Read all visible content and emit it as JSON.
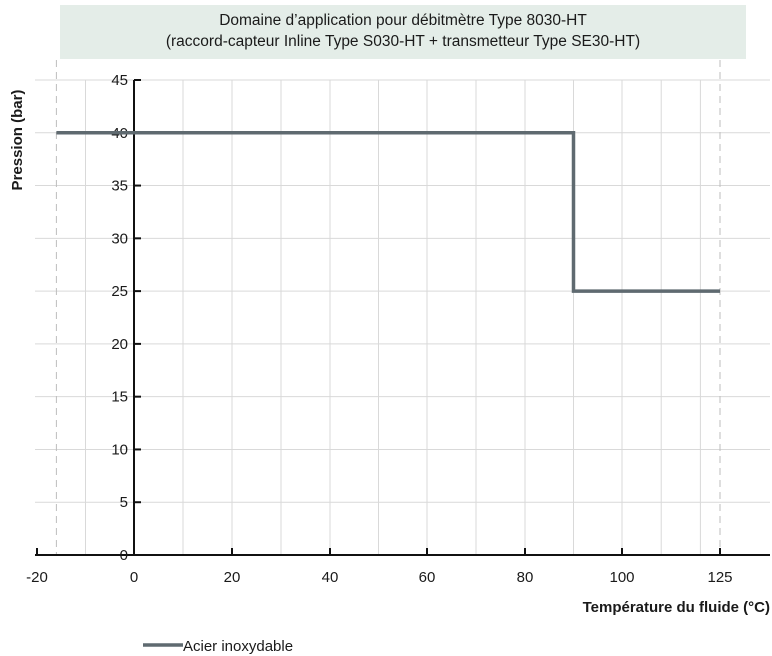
{
  "chart_data": {
    "type": "line",
    "title_line1": "Domaine d’application pour débitmètre Type 8030-HT",
    "title_line2": "(raccord-capteur Inline Type S030-HT + transmetteur Type SE30-HT)",
    "xlabel": "Température du fluide (°C)",
    "ylabel": "Pression (bar)",
    "x_ticks": [
      -20,
      0,
      20,
      40,
      60,
      80,
      100,
      125
    ],
    "y_ticks": [
      0,
      5,
      10,
      15,
      20,
      25,
      30,
      35,
      40,
      45
    ],
    "ylim": [
      0,
      45
    ],
    "grid": true,
    "series": [
      {
        "name": "Acier inoxydable",
        "color": "#5f6a70",
        "x": [
          -16,
          90,
          90,
          125
        ],
        "y": [
          40,
          40,
          25,
          25
        ]
      }
    ],
    "legend_position": "bottom-left"
  }
}
